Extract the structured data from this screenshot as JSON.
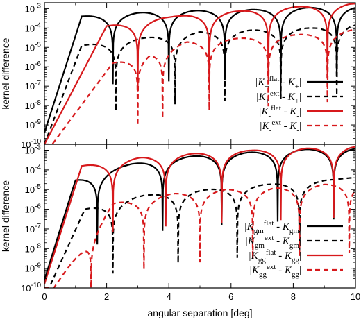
{
  "chart_data": [
    {
      "type": "line",
      "panel": "top",
      "ylabel": "kernel difference",
      "xlabel": "",
      "xlim": [
        0,
        10
      ],
      "ylim_log10": [
        -10,
        -2.7
      ],
      "yscale": "log",
      "y_ticks": [
        -10,
        -9,
        -8,
        -7,
        -6,
        -5,
        -4,
        -3
      ],
      "y_tick_labels": [
        "10^-10",
        "10^-9",
        "10^-8",
        "10^-7",
        "10^-6",
        "10^-5",
        "10^-4",
        "10^-3"
      ],
      "x_ticks": [
        0,
        2,
        4,
        6,
        8,
        10
      ],
      "legend_position": "bottom-right",
      "series": [
        {
          "name_parts": [
            "|K",
            "+",
            "flat",
            " - K",
            "+",
            "|"
          ],
          "color": "#000000",
          "dash": "solid",
          "peaks": [
            [
              0,
              -9.4
            ],
            [
              1.2,
              -3.4
            ],
            [
              3.2,
              -3.2
            ],
            [
              5.0,
              -3.1
            ],
            [
              6.8,
              -3.05
            ],
            [
              8.5,
              -2.95
            ],
            [
              9.7,
              -2.9
            ]
          ],
          "zeros": [
            2.2,
            4.0,
            5.8,
            7.6,
            9.4
          ]
        },
        {
          "name_parts": [
            "|K",
            "+",
            "ext",
            " - K",
            "+",
            "|"
          ],
          "color": "#000000",
          "dash": "dashed",
          "peaks": [
            [
              0,
              -10
            ],
            [
              1.2,
              -4.9
            ],
            [
              3.3,
              -4.5
            ],
            [
              5.0,
              -4.2
            ],
            [
              6.9,
              -4.1
            ],
            [
              8.6,
              -4.0
            ],
            [
              9.8,
              -3.8
            ]
          ],
          "zeros": [
            2.3,
            4.2,
            5.8,
            7.6,
            9.4
          ]
        },
        {
          "name_parts": [
            "|K",
            "-",
            "flat",
            " - K",
            "-",
            "|"
          ],
          "color": "#d7191c",
          "dash": "solid",
          "peaks": [
            [
              0,
              -10
            ],
            [
              2.0,
              -3.9
            ],
            [
              4.2,
              -3.4
            ],
            [
              6.1,
              -3.15
            ],
            [
              8.2,
              -2.9
            ],
            [
              9.8,
              -2.75
            ]
          ],
          "zeros": [
            3.0,
            5.3,
            7.2,
            9.1
          ]
        },
        {
          "name_parts": [
            "|K",
            "-",
            "ext",
            " - K",
            "-",
            "|"
          ],
          "color": "#d7191c",
          "dash": "dashed",
          "peaks": [
            [
              0.25,
              -10
            ],
            [
              2.2,
              -5.8
            ],
            [
              4.6,
              -4.7
            ],
            [
              6.6,
              -4.5
            ],
            [
              8.6,
              -4.3
            ],
            [
              9.9,
              -4.1
            ]
          ],
          "zeros": [
            3.0,
            3.8,
            5.3,
            7.2,
            9.1
          ]
        }
      ]
    },
    {
      "type": "line",
      "panel": "bottom",
      "ylabel": "kernel difference",
      "xlabel": "angular separation [deg]",
      "xlim": [
        0,
        10
      ],
      "ylim_log10": [
        -10,
        -2.7
      ],
      "yscale": "log",
      "y_ticks": [
        -10,
        -9,
        -8,
        -7,
        -6,
        -5,
        -4,
        -3
      ],
      "y_tick_labels": [
        "10^-10",
        "10^-9",
        "10^-8",
        "10^-7",
        "10^-6",
        "10^-5",
        "10^-4",
        "10^-3"
      ],
      "x_ticks": [
        0,
        2,
        4,
        6,
        8,
        10
      ],
      "x_tick_labels": [
        "0",
        "2",
        "4",
        "6",
        "8",
        "10"
      ],
      "legend_position": "bottom-right",
      "series": [
        {
          "name_parts": [
            "|K",
            "gm",
            "flat",
            " - K",
            "gm",
            "|"
          ],
          "color": "#000000",
          "dash": "solid",
          "peaks": [
            [
              0,
              -9.6
            ],
            [
              1.0,
              -4.5
            ],
            [
              2.8,
              -3.7
            ],
            [
              4.8,
              -3.3
            ],
            [
              6.7,
              -3.1
            ],
            [
              8.5,
              -2.95
            ],
            [
              9.8,
              -2.9
            ]
          ],
          "zeros": [
            1.7,
            3.8,
            5.7,
            7.5,
            9.3
          ]
        },
        {
          "name_parts": [
            "|K",
            "gm",
            "ext",
            " - K",
            "gm",
            "|"
          ],
          "color": "#000000",
          "dash": "dashed",
          "peaks": [
            [
              0.15,
              -10
            ],
            [
              1.3,
              -6.0
            ],
            [
              3.2,
              -5.3
            ],
            [
              5.3,
              -5.0
            ],
            [
              7.1,
              -4.75
            ],
            [
              8.9,
              -4.55
            ],
            [
              9.9,
              -4.4
            ]
          ],
          "zeros": [
            2.2,
            4.3,
            6.2,
            8.2
          ]
        },
        {
          "name_parts": [
            "|K",
            "gg",
            "flat",
            " - K",
            "gg",
            "|"
          ],
          "color": "#d7191c",
          "dash": "solid",
          "peaks": [
            [
              0,
              -9.8
            ],
            [
              1.2,
              -3.8
            ],
            [
              3.2,
              -3.35
            ],
            [
              5.0,
              -3.15
            ],
            [
              6.8,
              -3.0
            ],
            [
              8.5,
              -2.9
            ],
            [
              9.8,
              -2.8
            ]
          ],
          "zeros": [
            2.2,
            3.9,
            5.7,
            7.6,
            9.3
          ]
        },
        {
          "name_parts": [
            "|K",
            "gg",
            "ext",
            " - K",
            "gg",
            "|"
          ],
          "color": "#d7191c",
          "dash": "dashed",
          "peaks": [
            [
              0.3,
              -10
            ],
            [
              2.2,
              -5.7
            ],
            [
              4.2,
              -5.2
            ],
            [
              5.8,
              -5.0
            ],
            [
              7.5,
              -4.9
            ],
            [
              9.3,
              -4.7
            ],
            [
              10,
              -4.6
            ]
          ],
          "zeros": [
            1.5,
            3.2,
            5.0,
            6.7,
            8.2,
            9.8
          ]
        }
      ]
    }
  ]
}
